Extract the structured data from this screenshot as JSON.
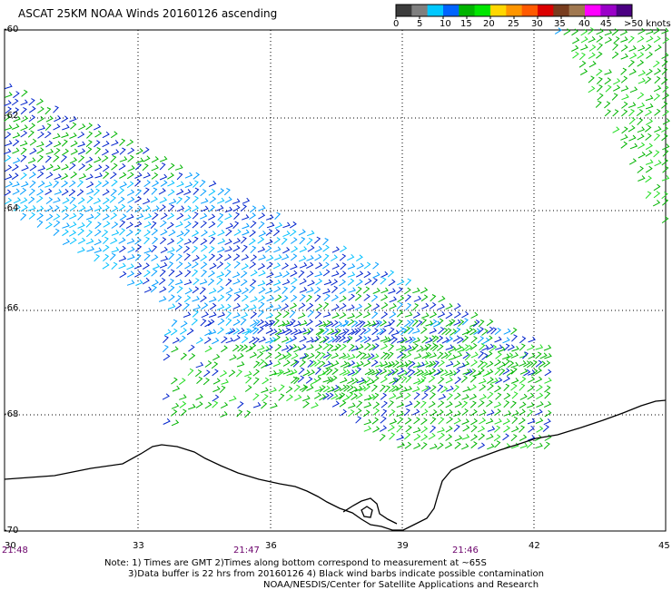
{
  "title": "ASCAT 25KM NOAA Winds 20160126 ascending",
  "color_scale": {
    "colors": [
      "#3c3c3c",
      "#7f7f7f",
      "#00c8ff",
      "#0064ff",
      "#00b400",
      "#00e600",
      "#ffd700",
      "#ff9600",
      "#ff5a00",
      "#dc0000",
      "#783c1e",
      "#a07850",
      "#ff00ff",
      "#9a00c8",
      "#4b0082"
    ],
    "labels": [
      "0",
      "5",
      "10",
      "15",
      "20",
      "25",
      "30",
      "35",
      "40",
      "45",
      ">50 knots"
    ]
  },
  "lat_labels": [
    "-60",
    "-62",
    "-64",
    "-66",
    "-68",
    "-70"
  ],
  "lon_labels": [
    "30",
    "33",
    "36",
    "39",
    "42",
    "45"
  ],
  "time_labels": [
    "21:48",
    "21:47",
    "21:46"
  ],
  "notes": {
    "line1": "Note: 1) Times are GMT 2)Times along bottom correspond to measurement at ~65S",
    "line2": "3)Data buffer is 22 hrs from 20160126 4) Black wind barbs indicate possible contamination",
    "line3": "NOAA/NESDIS/Center for Satellite Applications and Research"
  },
  "barb_colors": {
    "cyan": "#00c0ff",
    "lightblue": "#009cff",
    "blue": "#0022cc",
    "green": "#00b400",
    "lime": "#22dd22",
    "black": "#000000"
  },
  "coastline_color": "#000000"
}
